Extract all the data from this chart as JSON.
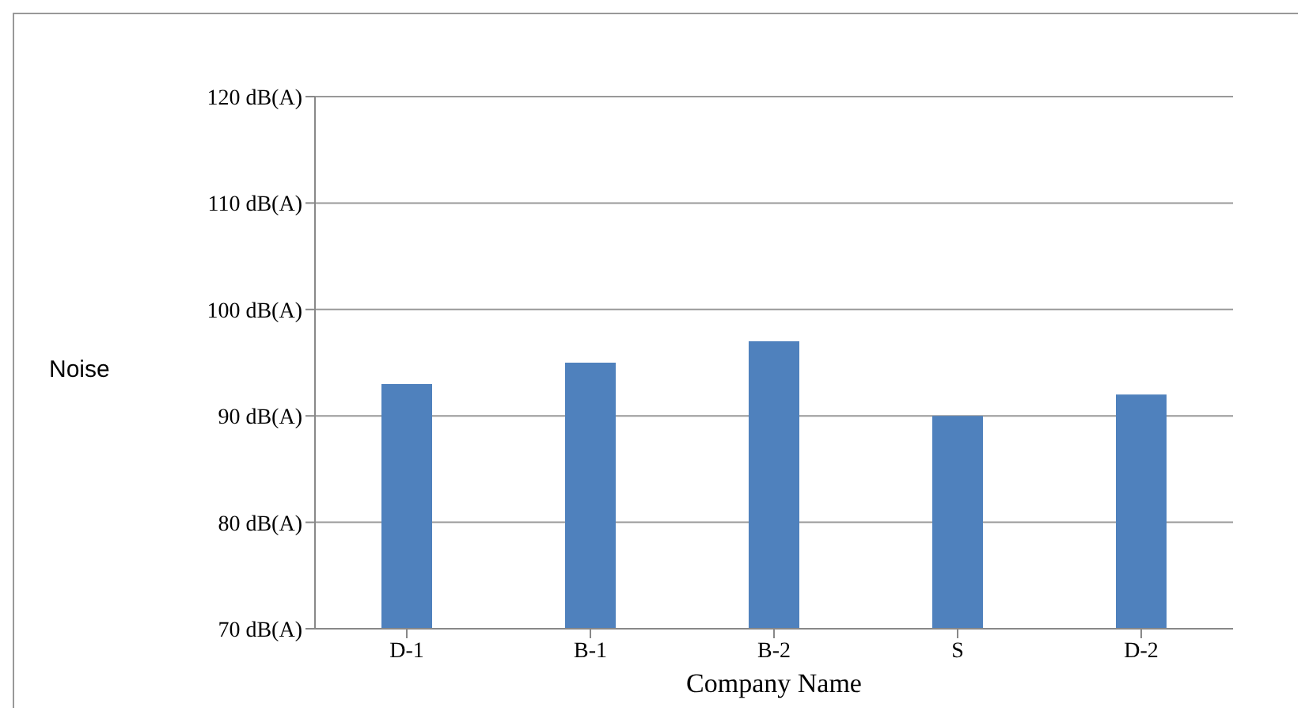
{
  "chart_data": {
    "type": "bar",
    "xlabel": "Company Name",
    "ylabel": "Noise",
    "categories": [
      "D-1",
      "B-1",
      "B-2",
      "S",
      "D-2"
    ],
    "series": [
      {
        "color": "#4f81bd",
        "values": [
          93,
          95,
          97,
          90,
          92
        ]
      }
    ],
    "ylim": [
      70,
      120
    ],
    "yticks": [
      {
        "value": 70,
        "label": "70 dB(A)"
      },
      {
        "value": 80,
        "label": "80 dB(A)"
      },
      {
        "value": 90,
        "label": "90 dB(A)"
      },
      {
        "value": 100,
        "label": "100 dB(A)"
      },
      {
        "value": 110,
        "label": "110 dB(A)"
      },
      {
        "value": 120,
        "label": "120 dB(A)"
      }
    ],
    "grid": "y",
    "legend": false
  }
}
